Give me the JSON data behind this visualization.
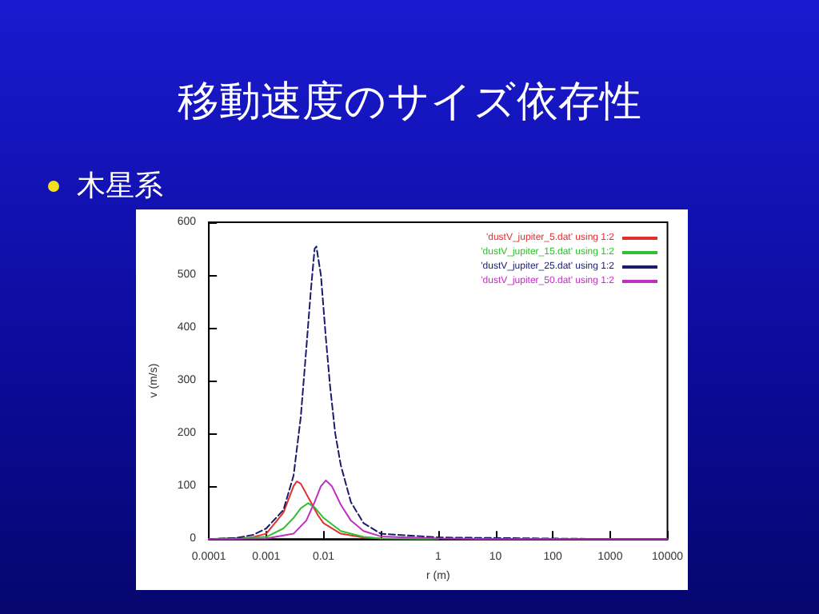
{
  "chart_data": {
    "type": "line",
    "title": "移動速度のサイズ依存性",
    "subtitle": "木星系",
    "xlabel": "r (m)",
    "ylabel": "v (m/s)",
    "log": "x",
    "xlim": [
      0.0001,
      10000
    ],
    "xticks": [
      0.0001,
      0.001,
      0.01,
      {
        "value": 0.1,
        "label": null
      },
      1,
      10,
      100,
      1000,
      10000
    ],
    "ylim": [
      0,
      600
    ],
    "yticks": [
      0,
      100,
      200,
      300,
      400,
      500,
      600
    ],
    "grid": false,
    "legend": "top right",
    "marker": "none",
    "series": [
      {
        "name": "'dustV_jupiter_5.dat' using 1:2",
        "color": "#e03030",
        "line_style": "solid",
        "x": [
          0.0001,
          0.0005,
          0.001,
          0.002,
          0.003,
          0.0034,
          0.004,
          0.006,
          0.008,
          0.01,
          0.02,
          0.05,
          0.1
        ],
        "values": [
          0,
          2,
          10,
          50,
          100,
          109,
          105,
          70,
          45,
          30,
          10,
          3,
          1
        ]
      },
      {
        "name": "'dustV_jupiter_15.dat' using 1:2",
        "color": "#30c030",
        "line_style": "solid",
        "x": [
          0.0001,
          0.001,
          0.002,
          0.003,
          0.004,
          0.0054,
          0.007,
          0.01,
          0.02,
          0.05,
          0.1,
          1
        ],
        "values": [
          0,
          4,
          20,
          40,
          58,
          68,
          60,
          40,
          15,
          4,
          1,
          0
        ]
      },
      {
        "name": "'dustV_jupiter_25.dat' using 1:2",
        "color": "#1a1a6e",
        "line_style": "dashed",
        "x": [
          0.0001,
          0.0003,
          0.0006,
          0.001,
          0.002,
          0.003,
          0.004,
          0.005,
          0.006,
          0.007,
          0.0075,
          0.009,
          0.011,
          0.013,
          0.016,
          0.02,
          0.03,
          0.05,
          0.1,
          0.2,
          1,
          10,
          100,
          1000
        ],
        "values": [
          0,
          2,
          8,
          20,
          55,
          120,
          230,
          360,
          470,
          550,
          554,
          500,
          380,
          290,
          200,
          140,
          70,
          30,
          10,
          8,
          3,
          2,
          1,
          0
        ]
      },
      {
        "name": "'dustV_jupiter_50.dat' using 1:2",
        "color": "#c030c0",
        "line_style": "solid",
        "x": [
          0.0001,
          0.001,
          0.003,
          0.005,
          0.007,
          0.009,
          0.011,
          0.014,
          0.02,
          0.03,
          0.05,
          0.1,
          1,
          10,
          100,
          1000,
          10000
        ],
        "values": [
          0,
          1,
          10,
          35,
          70,
          100,
          111,
          100,
          65,
          35,
          15,
          5,
          1,
          0,
          0,
          0,
          0
        ]
      }
    ]
  }
}
